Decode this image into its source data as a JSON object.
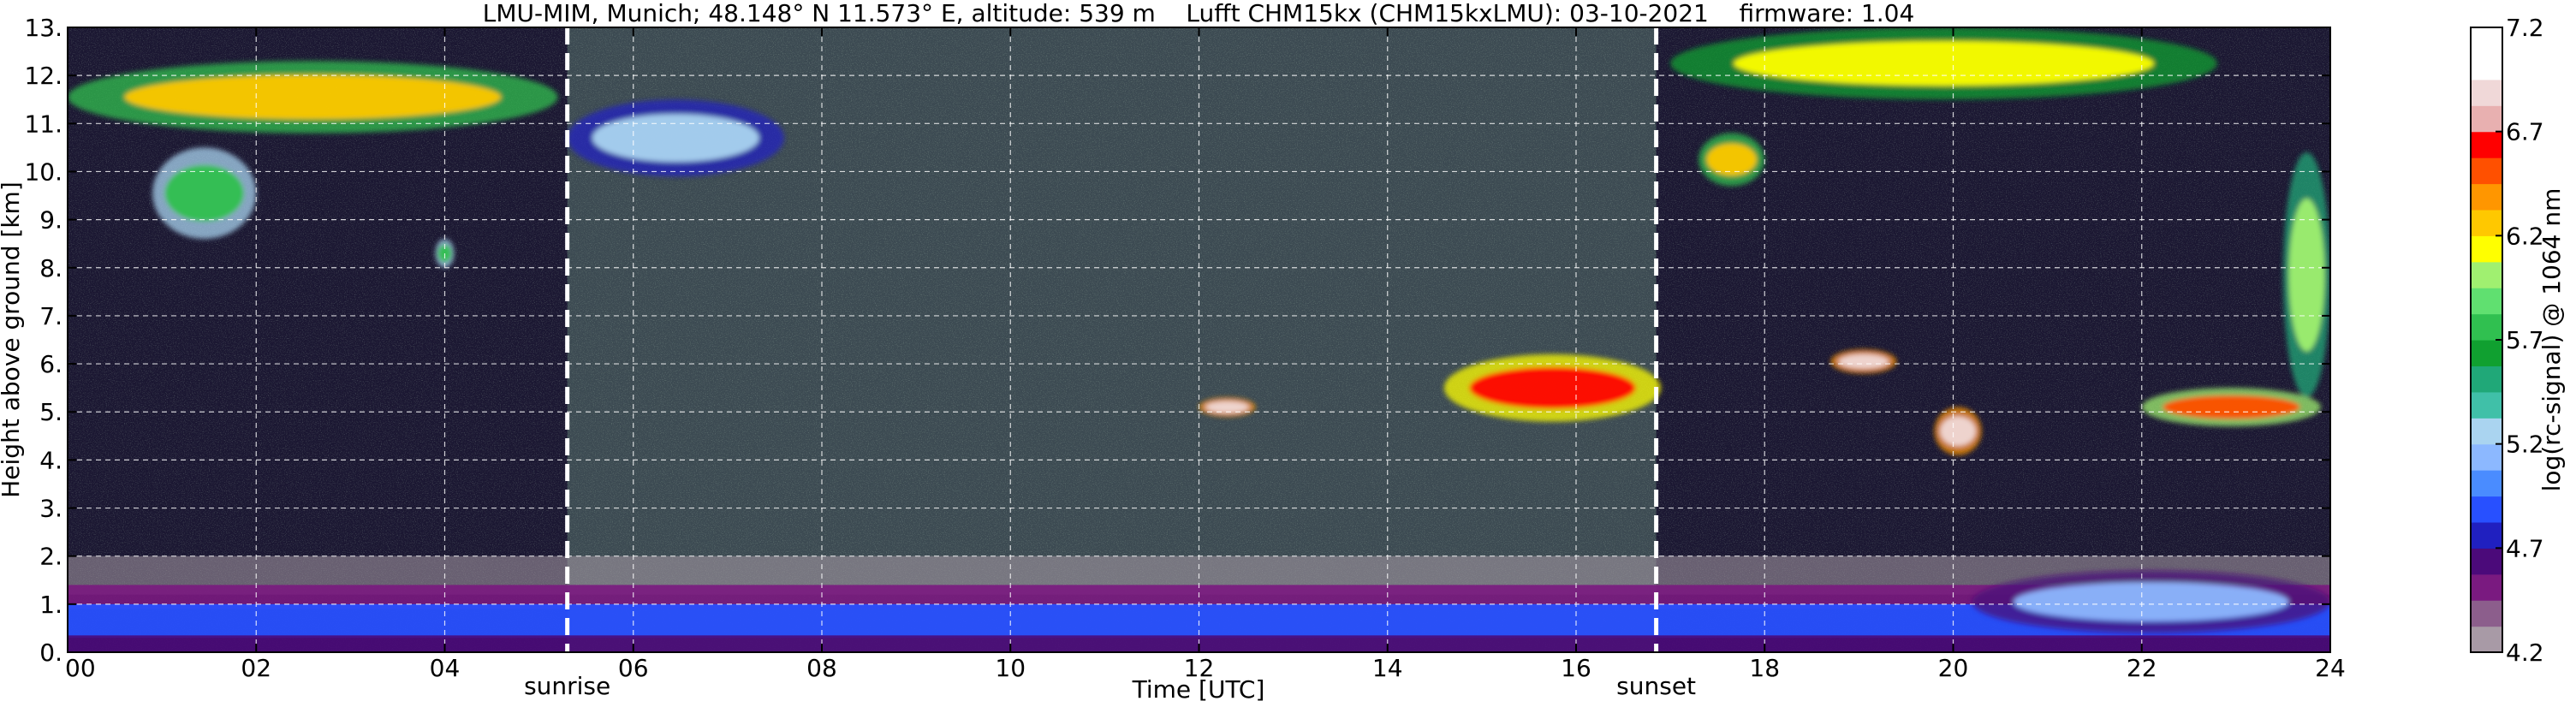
{
  "chart_data": {
    "type": "heatmap",
    "title": "LMU-MIM, Munich; 48.148° N 11.573° E, altitude: 539 m    Lufft CHM15kx (CHM15kxLMU): 03-10-2021    firmware: 1.04",
    "xlabel": "Time [UTC]",
    "ylabel": "Height above ground [km]",
    "x_range": [
      0,
      24
    ],
    "y_range": [
      0,
      13
    ],
    "x_ticks": [
      0,
      2,
      4,
      6,
      8,
      10,
      12,
      14,
      16,
      18,
      20,
      22,
      24
    ],
    "x_tick_labels": [
      "00",
      "02",
      "04",
      "06",
      "08",
      "10",
      "12",
      "14",
      "16",
      "18",
      "20",
      "22",
      "24"
    ],
    "y_ticks": [
      0,
      1,
      2,
      3,
      4,
      5,
      6,
      7,
      8,
      9,
      10,
      11,
      12,
      13
    ],
    "y_tick_labels": [
      "0.",
      "1.",
      "2.",
      "3.",
      "4.",
      "5.",
      "6.",
      "7.",
      "8.",
      "9.",
      "10.",
      "11.",
      "12.",
      "13."
    ],
    "grid": true,
    "colorbar": {
      "label": "log(rc-signal) @ 1064 nm",
      "range": [
        4.2,
        7.2
      ],
      "ticks": [
        4.2,
        4.7,
        5.2,
        5.7,
        6.2,
        6.7,
        7.2
      ],
      "tick_labels": [
        "4.2",
        "4.7",
        "5.2",
        "5.7",
        "6.2",
        "6.7",
        "7.2"
      ],
      "colors": [
        "#a89aa6",
        "#8c5e8c",
        "#7a1a80",
        "#4b0a7a",
        "#2020c0",
        "#2850ff",
        "#4a8cff",
        "#8cb8ff",
        "#aad4f0",
        "#40c0a8",
        "#20a878",
        "#10a030",
        "#30c050",
        "#60e070",
        "#a0f070",
        "#ffff00",
        "#ffc800",
        "#ff9600",
        "#ff5000",
        "#ff0000",
        "#e8b0b0",
        "#f0d8d8",
        "#ffffff",
        "#ffffff"
      ]
    },
    "events": [
      {
        "label": "sunrise",
        "time": 5.3
      },
      {
        "label": "sunset",
        "time": 16.85
      }
    ],
    "features": [
      {
        "kind": "cirrus",
        "t0": 0.0,
        "t1": 5.2,
        "h0": 10.8,
        "h1": 12.3,
        "level": 6.3
      },
      {
        "kind": "cirrus-fallstreak",
        "t0": 0.9,
        "t1": 2.0,
        "h0": 8.6,
        "h1": 10.5,
        "level": 5.7
      },
      {
        "kind": "cloud",
        "t0": 3.9,
        "t1": 4.1,
        "h0": 8.0,
        "h1": 8.6,
        "level": 5.8
      },
      {
        "kind": "thin-cirrus",
        "t0": 5.3,
        "t1": 7.6,
        "h0": 9.9,
        "h1": 11.5,
        "level": 5.3
      },
      {
        "kind": "altocumulus",
        "t0": 12.0,
        "t1": 12.6,
        "h0": 4.9,
        "h1": 5.3,
        "level": 6.9
      },
      {
        "kind": "altocumulus",
        "t0": 14.6,
        "t1": 16.9,
        "h0": 4.8,
        "h1": 6.2,
        "level": 6.6
      },
      {
        "kind": "altocumulus",
        "t0": 18.7,
        "t1": 19.4,
        "h0": 5.8,
        "h1": 6.3,
        "level": 6.9
      },
      {
        "kind": "altocumulus",
        "t0": 19.8,
        "t1": 20.3,
        "h0": 4.1,
        "h1": 5.1,
        "level": 6.9
      },
      {
        "kind": "altocumulus",
        "t0": 22.0,
        "t1": 23.9,
        "h0": 4.7,
        "h1": 5.5,
        "level": 6.5
      },
      {
        "kind": "cirrus",
        "t0": 17.0,
        "t1": 22.8,
        "h0": 11.5,
        "h1": 13.0,
        "level": 6.1
      },
      {
        "kind": "cirrus",
        "t0": 17.3,
        "t1": 18.0,
        "h0": 9.7,
        "h1": 10.8,
        "level": 6.2
      },
      {
        "kind": "cirrus-fallstreak",
        "t0": 23.5,
        "t1": 24.0,
        "h0": 5.3,
        "h1": 10.4,
        "level": 6.0
      },
      {
        "kind": "boundary-layer",
        "t0": 20.2,
        "t1": 24.0,
        "h0": 0.4,
        "h1": 1.7,
        "level": 5.1
      }
    ]
  }
}
